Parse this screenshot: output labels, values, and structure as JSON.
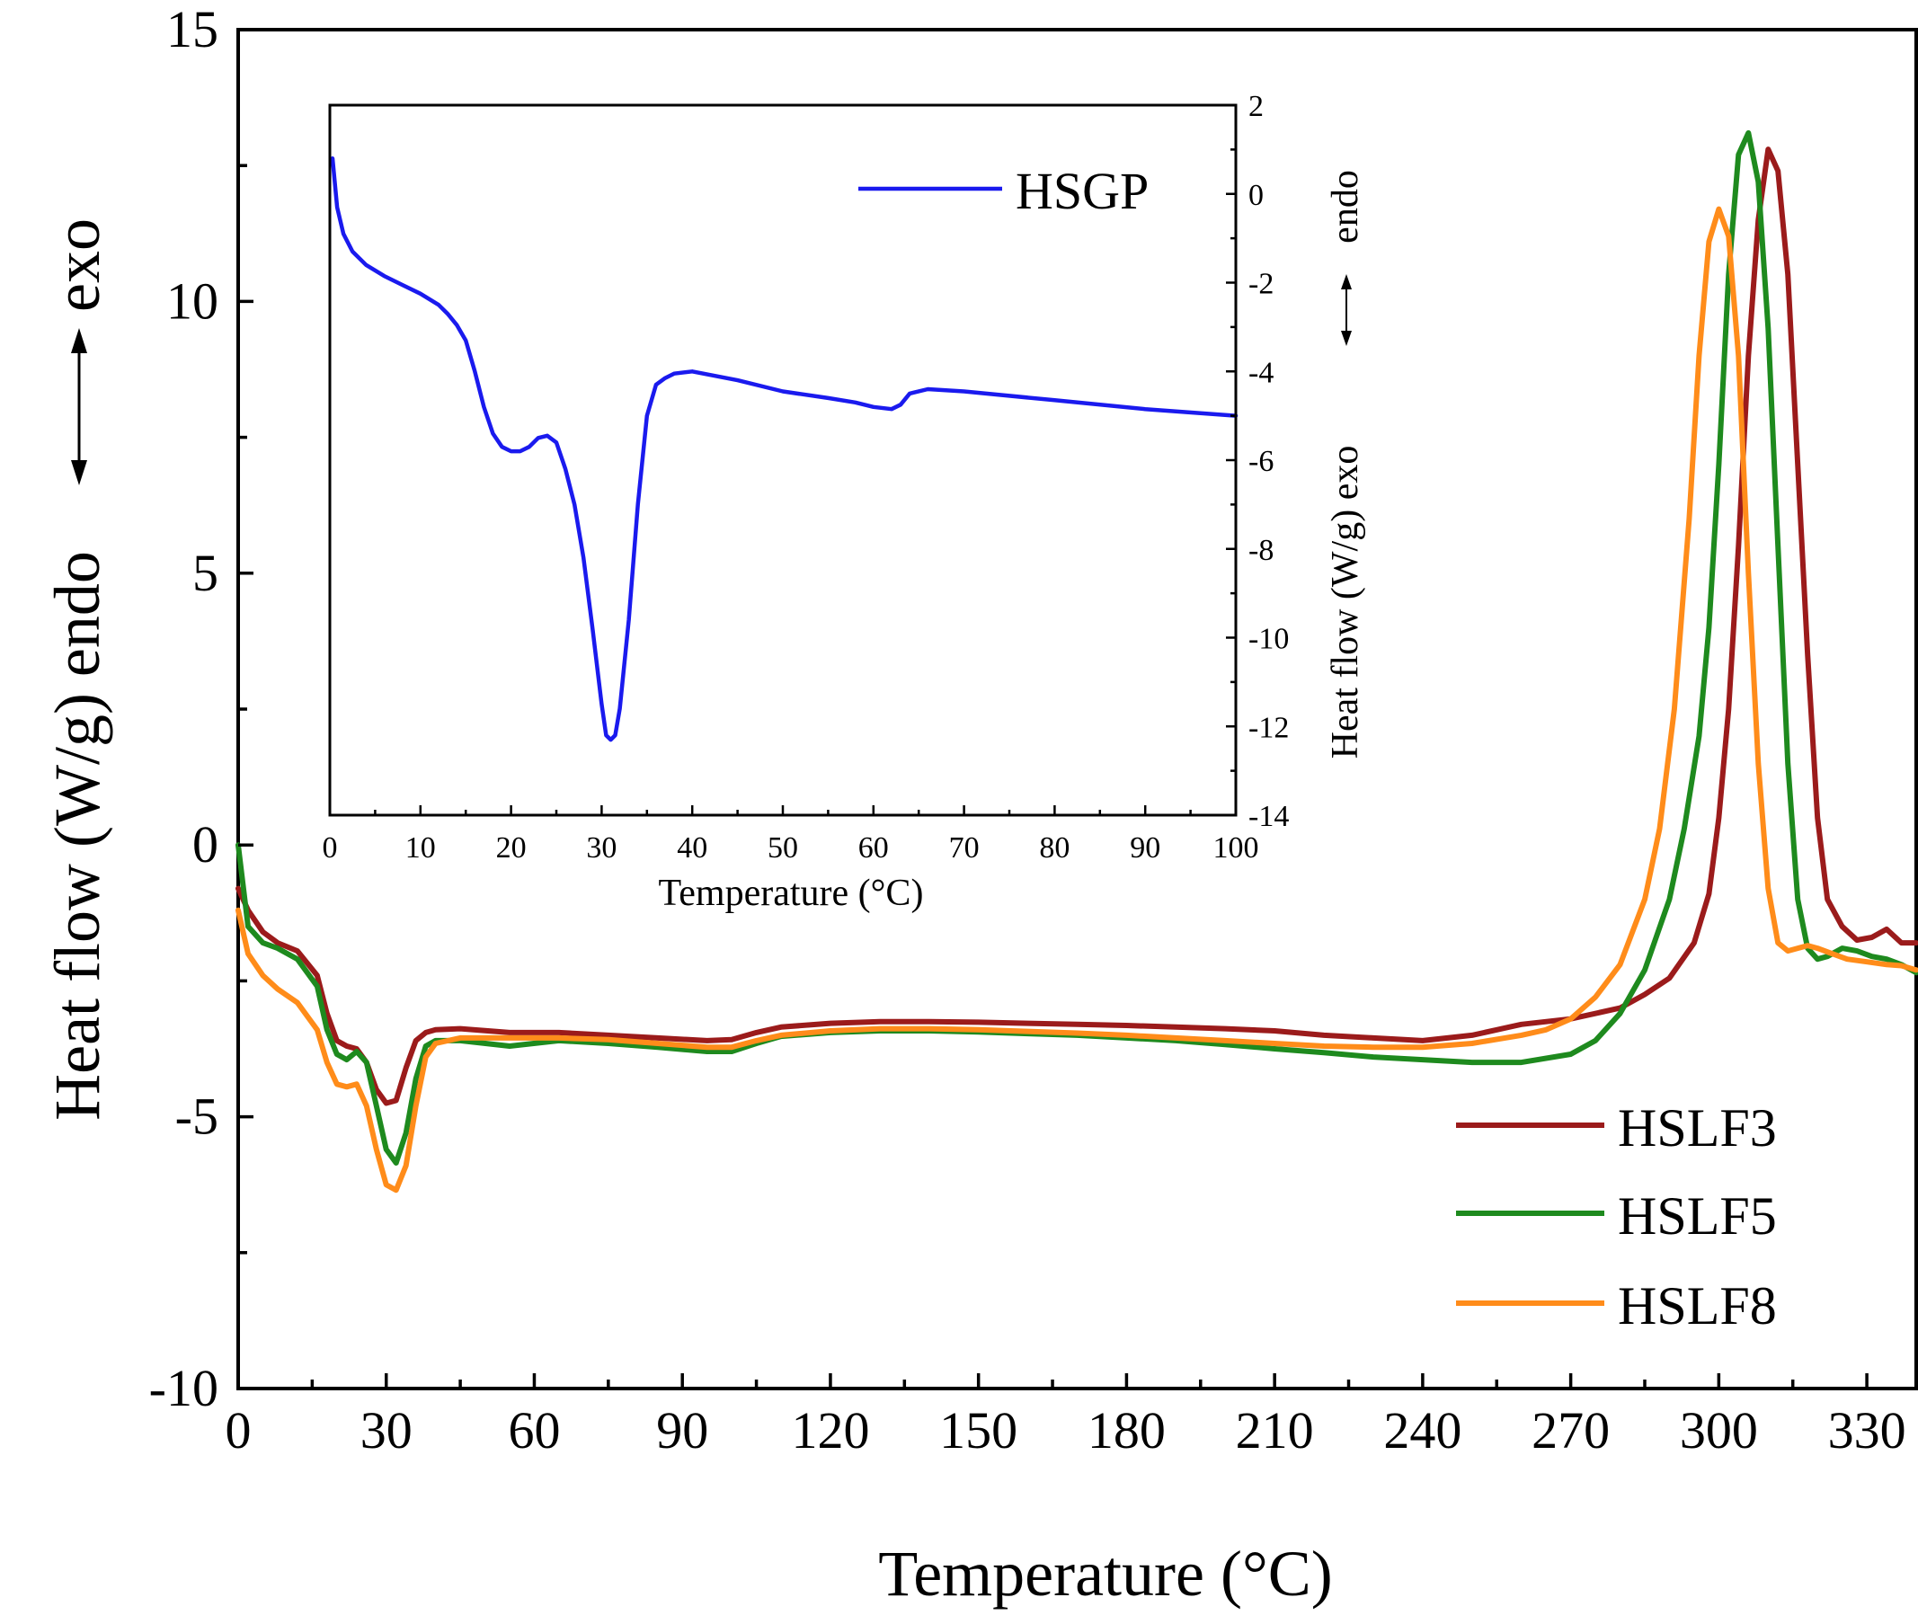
{
  "chart_data": [
    {
      "type": "line",
      "name": "main",
      "xlabel": "Temperature (°C)",
      "ylabel": "Heat flow (W/g)  endo",
      "ylabel_exo": "exo",
      "xlim": [
        0,
        340
      ],
      "ylim": [
        -10,
        15
      ],
      "xticks": [
        0,
        30,
        60,
        90,
        120,
        150,
        180,
        210,
        240,
        270,
        300,
        330
      ],
      "yticks": [
        -10,
        -5,
        0,
        5,
        10,
        15
      ],
      "legend_position": "bottom-right",
      "series": [
        {
          "name": "HSLF3",
          "color": "#9b1b1b",
          "x": [
            0,
            2,
            5,
            8,
            12,
            16,
            18,
            20,
            22,
            24,
            26,
            28,
            30,
            32,
            34,
            36,
            38,
            40,
            45,
            55,
            65,
            75,
            85,
            95,
            100,
            105,
            110,
            120,
            130,
            140,
            150,
            160,
            170,
            180,
            190,
            200,
            210,
            220,
            230,
            240,
            250,
            260,
            270,
            280,
            285,
            290,
            295,
            298,
            300,
            302,
            304,
            306,
            308,
            310,
            312,
            314,
            316,
            318,
            320,
            322,
            325,
            328,
            331,
            334,
            337,
            340
          ],
          "y": [
            -0.8,
            -1.2,
            -1.6,
            -1.8,
            -1.95,
            -2.4,
            -3.1,
            -3.6,
            -3.7,
            -3.75,
            -4.0,
            -4.5,
            -4.75,
            -4.7,
            -4.1,
            -3.6,
            -3.45,
            -3.4,
            -3.38,
            -3.45,
            -3.45,
            -3.5,
            -3.55,
            -3.6,
            -3.58,
            -3.45,
            -3.35,
            -3.28,
            -3.25,
            -3.25,
            -3.26,
            -3.28,
            -3.3,
            -3.32,
            -3.35,
            -3.38,
            -3.42,
            -3.5,
            -3.55,
            -3.6,
            -3.5,
            -3.3,
            -3.2,
            -3.0,
            -2.75,
            -2.45,
            -1.8,
            -0.9,
            0.5,
            2.5,
            5.5,
            9.0,
            11.5,
            12.8,
            12.4,
            10.5,
            7.0,
            3.5,
            0.5,
            -1.0,
            -1.5,
            -1.75,
            -1.7,
            -1.55,
            -1.8,
            -1.8
          ]
        },
        {
          "name": "HSLF5",
          "color": "#1e8a1e",
          "x": [
            0,
            2,
            5,
            8,
            12,
            16,
            18,
            20,
            22,
            24,
            26,
            28,
            30,
            32,
            34,
            36,
            38,
            40,
            45,
            55,
            65,
            75,
            85,
            95,
            100,
            105,
            110,
            120,
            130,
            140,
            150,
            160,
            170,
            180,
            190,
            200,
            210,
            220,
            230,
            240,
            250,
            260,
            270,
            275,
            280,
            285,
            290,
            293,
            296,
            298,
            300,
            302,
            304,
            306,
            308,
            310,
            312,
            314,
            316,
            318,
            320,
            322,
            325,
            328,
            331,
            334,
            337,
            340
          ],
          "y": [
            0,
            -1.5,
            -1.8,
            -1.9,
            -2.1,
            -2.6,
            -3.4,
            -3.85,
            -3.95,
            -3.8,
            -4.0,
            -4.8,
            -5.6,
            -5.85,
            -5.3,
            -4.3,
            -3.7,
            -3.6,
            -3.6,
            -3.7,
            -3.6,
            -3.65,
            -3.72,
            -3.8,
            -3.8,
            -3.65,
            -3.52,
            -3.45,
            -3.42,
            -3.42,
            -3.44,
            -3.47,
            -3.5,
            -3.55,
            -3.6,
            -3.67,
            -3.75,
            -3.82,
            -3.9,
            -3.95,
            -4.0,
            -4.0,
            -3.85,
            -3.6,
            -3.1,
            -2.3,
            -1.0,
            0.3,
            2.0,
            4.0,
            7.0,
            10.5,
            12.7,
            13.1,
            12.2,
            9.5,
            5.5,
            1.5,
            -1.0,
            -1.9,
            -2.1,
            -2.05,
            -1.9,
            -1.95,
            -2.05,
            -2.1,
            -2.2,
            -2.35
          ]
        },
        {
          "name": "HSLF8",
          "color": "#ff8c1a",
          "x": [
            0,
            2,
            5,
            8,
            12,
            16,
            18,
            20,
            22,
            24,
            26,
            28,
            30,
            32,
            34,
            36,
            38,
            40,
            45,
            55,
            65,
            75,
            85,
            95,
            100,
            105,
            110,
            120,
            130,
            140,
            150,
            160,
            170,
            180,
            190,
            200,
            210,
            220,
            230,
            240,
            250,
            260,
            265,
            270,
            275,
            280,
            285,
            288,
            291,
            294,
            296,
            298,
            300,
            302,
            304,
            306,
            308,
            310,
            312,
            314,
            316,
            318,
            320,
            323,
            326,
            330,
            334,
            337,
            340
          ],
          "y": [
            -1.2,
            -2.0,
            -2.4,
            -2.65,
            -2.9,
            -3.4,
            -4.0,
            -4.4,
            -4.45,
            -4.4,
            -4.8,
            -5.6,
            -6.25,
            -6.35,
            -5.9,
            -4.8,
            -3.9,
            -3.65,
            -3.55,
            -3.55,
            -3.55,
            -3.58,
            -3.65,
            -3.72,
            -3.72,
            -3.6,
            -3.5,
            -3.42,
            -3.38,
            -3.38,
            -3.4,
            -3.43,
            -3.46,
            -3.5,
            -3.55,
            -3.6,
            -3.65,
            -3.7,
            -3.72,
            -3.72,
            -3.65,
            -3.5,
            -3.4,
            -3.2,
            -2.8,
            -2.2,
            -1.0,
            0.3,
            2.5,
            6.0,
            9.0,
            11.1,
            11.7,
            11.2,
            9.0,
            5.0,
            1.5,
            -0.8,
            -1.8,
            -1.95,
            -1.9,
            -1.85,
            -1.9,
            -2.0,
            -2.1,
            -2.15,
            -2.2,
            -2.22,
            -2.3
          ]
        }
      ]
    },
    {
      "type": "line",
      "name": "inset",
      "xlabel": "Temperature (°C)",
      "ylabel": "Heat flow (W/g)  exo",
      "ylabel_endo": "endo",
      "xlim": [
        0,
        100
      ],
      "ylim": [
        -14,
        2
      ],
      "xticks": [
        0,
        10,
        20,
        30,
        40,
        50,
        60,
        70,
        80,
        90,
        100
      ],
      "yticks": [
        -14,
        -12,
        -10,
        -8,
        -6,
        -4,
        -2,
        0,
        2
      ],
      "legend_position": "top-right",
      "series": [
        {
          "name": "HSGP",
          "color": "#1a1aee",
          "x": [
            0.3,
            0.8,
            1.5,
            2.5,
            4,
            6,
            8,
            10,
            12,
            13,
            14,
            15,
            16,
            17,
            18,
            19,
            20,
            21,
            22,
            23,
            24,
            25,
            26,
            27,
            28,
            29,
            30,
            30.5,
            31,
            31.5,
            32,
            33,
            34,
            35,
            36,
            37,
            38,
            40,
            45,
            50,
            55,
            58,
            60,
            62,
            63,
            64,
            66,
            70,
            80,
            90,
            100
          ],
          "y": [
            0.8,
            -0.3,
            -0.9,
            -1.3,
            -1.6,
            -1.85,
            -2.05,
            -2.25,
            -2.5,
            -2.7,
            -2.95,
            -3.3,
            -4.0,
            -4.8,
            -5.4,
            -5.7,
            -5.8,
            -5.8,
            -5.7,
            -5.5,
            -5.45,
            -5.6,
            -6.2,
            -7.0,
            -8.2,
            -9.8,
            -11.5,
            -12.2,
            -12.3,
            -12.2,
            -11.6,
            -9.6,
            -7.0,
            -5.0,
            -4.3,
            -4.15,
            -4.05,
            -4.0,
            -4.2,
            -4.45,
            -4.6,
            -4.7,
            -4.8,
            -4.85,
            -4.75,
            -4.5,
            -4.4,
            -4.45,
            -4.65,
            -4.85,
            -5.0
          ]
        }
      ]
    }
  ]
}
